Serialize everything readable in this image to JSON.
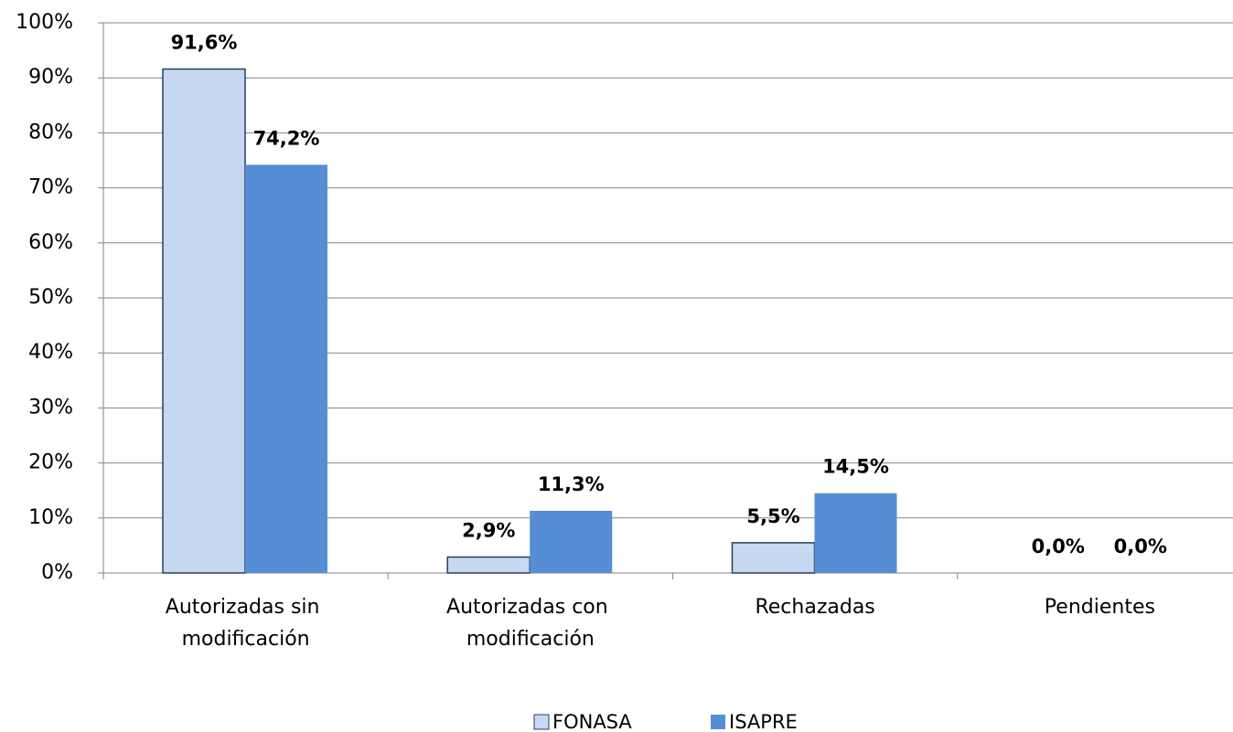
{
  "chart_data": {
    "type": "bar",
    "categories": [
      "Autorizadas sin modificación",
      "Autorizadas con modificación",
      "Rechazadas",
      "Pendientes"
    ],
    "series": [
      {
        "name": "FONASA",
        "color": "#c6d9f1",
        "values": [
          91.6,
          2.9,
          5.5,
          0.0
        ],
        "value_labels": [
          "91,6%",
          "2,9%",
          "5,5%",
          "0,0%"
        ]
      },
      {
        "name": "ISAPRE",
        "color": "#558ed5",
        "values": [
          74.2,
          11.3,
          14.5,
          0.0
        ],
        "value_labels": [
          "74,2%",
          "11,3%",
          "14,5%",
          "0,0%"
        ]
      }
    ],
    "ylim": [
      0,
      100
    ],
    "yticks": [
      {
        "value": 0,
        "label": "0%"
      },
      {
        "value": 10,
        "label": "10%"
      },
      {
        "value": 20,
        "label": "20%"
      },
      {
        "value": 30,
        "label": "30%"
      },
      {
        "value": 40,
        "label": "40%"
      },
      {
        "value": 50,
        "label": "50%"
      },
      {
        "value": 60,
        "label": "60%"
      },
      {
        "value": 70,
        "label": "70%"
      },
      {
        "value": 80,
        "label": "80%"
      },
      {
        "value": 90,
        "label": "90%"
      },
      {
        "value": 100,
        "label": "100%"
      }
    ],
    "grid": true,
    "legend": "bottom"
  }
}
